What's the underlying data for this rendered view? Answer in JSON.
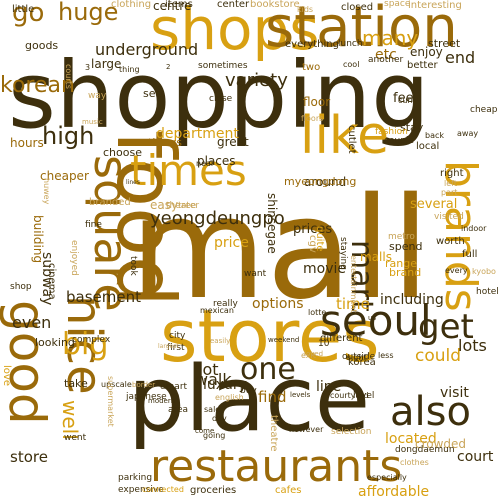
{
  "palette": {
    "dark": "#3d2f0d",
    "brown": "#9a6a0a",
    "gold": "#d8a012",
    "tan": "#c9a55a",
    "light": "#e7cf8f"
  },
  "words": [
    {
      "text": "shopping",
      "tone": "dark"
    },
    {
      "text": "mall",
      "tone": "brown"
    },
    {
      "text": "place",
      "tone": "dark"
    },
    {
      "text": "food",
      "tone": "brown"
    },
    {
      "text": "stores",
      "tone": "gold"
    },
    {
      "text": "shops",
      "tone": "gold"
    },
    {
      "text": "station",
      "tone": "brown"
    },
    {
      "text": "restaurants",
      "tone": "brown"
    },
    {
      "text": "like",
      "tone": "gold"
    },
    {
      "text": "times",
      "tone": "gold"
    },
    {
      "text": "good",
      "tone": "brown"
    },
    {
      "text": "square",
      "tone": "brown"
    },
    {
      "text": "nice",
      "tone": "brown"
    },
    {
      "text": "seoul",
      "tone": "dark"
    },
    {
      "text": "brands",
      "tone": "gold"
    },
    {
      "text": "get",
      "tone": "dark"
    },
    {
      "text": "also",
      "tone": "dark"
    },
    {
      "text": "one",
      "tone": "dark"
    },
    {
      "text": "big",
      "tone": "gold"
    },
    {
      "text": "mart",
      "tone": "dark"
    },
    {
      "text": "yeongdeungpo",
      "tone": "dark"
    },
    {
      "text": "go",
      "tone": "brown"
    },
    {
      "text": "huge",
      "tone": "brown"
    },
    {
      "text": "many",
      "tone": "gold"
    },
    {
      "text": "high",
      "tone": "dark"
    },
    {
      "text": "variety",
      "tone": "dark"
    },
    {
      "text": "korean",
      "tone": "brown"
    },
    {
      "text": "underground",
      "tone": "dark"
    },
    {
      "text": "department",
      "tone": "gold"
    },
    {
      "text": "basement",
      "tone": "dark"
    },
    {
      "text": "subway",
      "tone": "dark"
    },
    {
      "text": "lot",
      "tone": "dark"
    },
    {
      "text": "walk",
      "tone": "dark"
    },
    {
      "text": "time",
      "tone": "gold"
    },
    {
      "text": "well",
      "tone": "gold"
    },
    {
      "text": "could",
      "tone": "gold"
    },
    {
      "text": "located",
      "tone": "gold"
    },
    {
      "text": "lots",
      "tone": "dark"
    },
    {
      "text": "line",
      "tone": "dark"
    },
    {
      "text": "luxury",
      "tone": "dark"
    },
    {
      "text": "find",
      "tone": "brown"
    },
    {
      "text": "visit",
      "tone": "dark"
    },
    {
      "text": "movie",
      "tone": "dark"
    },
    {
      "text": "options",
      "tone": "brown"
    },
    {
      "text": "including",
      "tone": "dark"
    },
    {
      "text": "crowded",
      "tone": "tan"
    },
    {
      "text": "court",
      "tone": "dark"
    },
    {
      "text": "store",
      "tone": "dark"
    },
    {
      "text": "affordable",
      "tone": "gold"
    },
    {
      "text": "even",
      "tone": "dark"
    },
    {
      "text": "end",
      "tone": "dark"
    },
    {
      "text": "etc",
      "tone": "brown"
    },
    {
      "text": "prices",
      "tone": "dark"
    },
    {
      "text": "malls",
      "tone": "gold"
    },
    {
      "text": "several",
      "tone": "gold"
    },
    {
      "text": "around",
      "tone": "dark"
    },
    {
      "text": "price",
      "tone": "gold"
    },
    {
      "text": "easy",
      "tone": "tan"
    },
    {
      "text": "cheaper",
      "tone": "brown"
    },
    {
      "text": "building",
      "tone": "brown"
    },
    {
      "text": "hours",
      "tone": "brown"
    },
    {
      "text": "choose",
      "tone": "dark"
    },
    {
      "text": "things",
      "tone": "brown"
    },
    {
      "text": "great",
      "tone": "dark"
    },
    {
      "text": "places",
      "tone": "dark"
    },
    {
      "text": "centre",
      "tone": "dark"
    },
    {
      "text": "cgv",
      "tone": "tan"
    },
    {
      "text": "shinsegae",
      "tone": "dark"
    },
    {
      "text": "floor",
      "tone": "brown"
    },
    {
      "text": "feel",
      "tone": "dark"
    },
    {
      "text": "stay",
      "tone": "dark"
    },
    {
      "text": "enjoy",
      "tone": "dark"
    },
    {
      "text": "large",
      "tone": "dark"
    },
    {
      "text": "goods",
      "tone": "dark"
    },
    {
      "text": "little",
      "tone": "dark"
    },
    {
      "text": "clothing",
      "tone": "tan"
    },
    {
      "text": "items",
      "tone": "dark"
    },
    {
      "text": "center",
      "tone": "dark"
    },
    {
      "text": "bookstore",
      "tone": "tan"
    },
    {
      "text": "closed",
      "tone": "dark"
    },
    {
      "text": "space",
      "tone": "tan"
    },
    {
      "text": "interesting",
      "tone": "tan"
    },
    {
      "text": "street",
      "tone": "dark"
    },
    {
      "text": "everything",
      "tone": "dark"
    },
    {
      "text": "lunch",
      "tone": "dark"
    },
    {
      "text": "better",
      "tone": "dark"
    },
    {
      "text": "another",
      "tone": "dark"
    },
    {
      "text": "cool",
      "tone": "dark"
    },
    {
      "text": "sometimes",
      "tone": "dark"
    },
    {
      "text": "thing",
      "tone": "dark"
    },
    {
      "text": "two",
      "tone": "brown"
    },
    {
      "text": "close",
      "tone": "dark"
    },
    {
      "text": "way",
      "tone": "tan"
    },
    {
      "text": "see",
      "tone": "dark"
    },
    {
      "text": "fashion",
      "tone": "gold"
    },
    {
      "text": "cutlet",
      "tone": "dark"
    },
    {
      "text": "couple",
      "tone": "dark"
    },
    {
      "text": "local",
      "tone": "dark"
    },
    {
      "text": "cheap",
      "tone": "dark"
    },
    {
      "text": "right",
      "tone": "dark"
    },
    {
      "text": "left",
      "tone": "tan"
    },
    {
      "text": "part",
      "tone": "tan"
    },
    {
      "text": "visited",
      "tone": "tan"
    },
    {
      "text": "indoor",
      "tone": "dark"
    },
    {
      "text": "worth",
      "tone": "dark"
    },
    {
      "text": "full",
      "tone": "dark"
    },
    {
      "text": "every",
      "tone": "dark"
    },
    {
      "text": "kyobo",
      "tone": "tan"
    },
    {
      "text": "hotel",
      "tone": "dark"
    },
    {
      "text": "metro",
      "tone": "tan"
    },
    {
      "text": "range",
      "tone": "gold"
    },
    {
      "text": "brand",
      "tone": "gold"
    },
    {
      "text": "spend",
      "tone": "dark"
    },
    {
      "text": "quite",
      "tone": "gold"
    },
    {
      "text": "myeongdong",
      "tone": "brown"
    },
    {
      "text": "theater",
      "tone": "tan"
    },
    {
      "text": "tree",
      "tone": "tan"
    },
    {
      "text": "branded",
      "tone": "tan"
    },
    {
      "text": "fine",
      "tone": "dark"
    },
    {
      "text": "enjoyed",
      "tone": "tan"
    },
    {
      "text": "cinema",
      "tone": "dark"
    },
    {
      "text": "shop",
      "tone": "dark"
    },
    {
      "text": "want",
      "tone": "dark"
    },
    {
      "text": "took",
      "tone": "dark"
    },
    {
      "text": "staying",
      "tone": "dark"
    },
    {
      "text": "really",
      "tone": "dark"
    },
    {
      "text": "mexican",
      "tone": "dark"
    },
    {
      "text": "complex",
      "tone": "dark"
    },
    {
      "text": "city",
      "tone": "dark"
    },
    {
      "text": "lotte",
      "tone": "dark"
    },
    {
      "text": "different",
      "tone": "dark"
    },
    {
      "text": "korea",
      "tone": "dark"
    },
    {
      "text": "outside",
      "tone": "dark"
    },
    {
      "text": "first",
      "tone": "dark"
    },
    {
      "text": "buy",
      "tone": "dark"
    },
    {
      "text": "emart",
      "tone": "dark"
    },
    {
      "text": "take",
      "tone": "dark"
    },
    {
      "text": "looking",
      "tone": "dark"
    },
    {
      "text": "love",
      "tone": "gold"
    },
    {
      "text": "area",
      "tone": "dark"
    },
    {
      "text": "japanese",
      "tone": "dark"
    },
    {
      "text": "modern",
      "tone": "dark"
    },
    {
      "text": "border",
      "tone": "tan"
    },
    {
      "text": "english",
      "tone": "tan"
    },
    {
      "text": "levels",
      "tone": "dark"
    },
    {
      "text": "courtyard",
      "tone": "dark"
    },
    {
      "text": "level",
      "tone": "dark"
    },
    {
      "text": "selection",
      "tone": "tan"
    },
    {
      "text": "upscale",
      "tone": "dark"
    },
    {
      "text": "supermarket",
      "tone": "tan"
    },
    {
      "text": "loved",
      "tone": "tan"
    },
    {
      "text": "theatre",
      "tone": "tan"
    },
    {
      "text": "sale",
      "tone": "dark"
    },
    {
      "text": "day",
      "tone": "dark"
    },
    {
      "text": "going",
      "tone": "dark"
    },
    {
      "text": "went",
      "tone": "dark"
    },
    {
      "text": "parking",
      "tone": "dark"
    },
    {
      "text": "expensive",
      "tone": "dark"
    },
    {
      "text": "connected",
      "tone": "gold"
    },
    {
      "text": "groceries",
      "tone": "dark"
    },
    {
      "text": "cafes",
      "tone": "gold"
    },
    {
      "text": "especially",
      "tone": "dark"
    },
    {
      "text": "dongdaemun",
      "tone": "dark"
    },
    {
      "text": "clothes",
      "tone": "tan"
    },
    {
      "text": "courts",
      "tone": "tan"
    },
    {
      "text": "3",
      "tone": "dark"
    },
    {
      "text": "2",
      "tone": "dark"
    },
    {
      "text": "10",
      "tone": "dark"
    },
    {
      "text": "however",
      "tone": "dark"
    },
    {
      "text": "back",
      "tone": "dark"
    },
    {
      "text": "come",
      "tone": "dark"
    },
    {
      "text": "near",
      "tone": "dark"
    },
    {
      "text": "eight",
      "tone": "dark"
    },
    {
      "text": "curry",
      "tone": "dark"
    },
    {
      "text": "floors",
      "tone": "tan"
    },
    {
      "text": "kids",
      "tone": "tan"
    },
    {
      "text": "exit",
      "tone": "tan"
    },
    {
      "text": "less",
      "tone": "dark"
    },
    {
      "text": "easily",
      "tone": "tan"
    },
    {
      "text": "weekend",
      "tone": "dark"
    },
    {
      "text": "away",
      "tone": "dark"
    },
    {
      "text": "huwey",
      "tone": "tan"
    },
    {
      "text": "music",
      "tone": "tan"
    },
    {
      "text": "lines",
      "tone": "dark"
    },
    {
      "text": "largest",
      "tone": "tan"
    },
    {
      "text": "us",
      "tone": "dark"
    },
    {
      "text": "entertainment",
      "tone": "tan"
    }
  ]
}
